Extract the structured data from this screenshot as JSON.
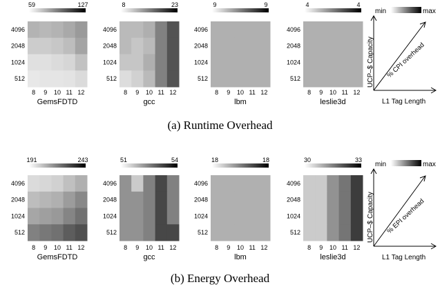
{
  "captions": {
    "runtime": "(a) Runtime Overhead",
    "energy": "(b) Energy Overhead"
  },
  "legend": {
    "min_label": "min",
    "max_label": "max",
    "y_axis_label": "UCP–$ Capacity",
    "x_axis_label": "L1 Tag Length",
    "runtime_diag_label": "% CPI overhead",
    "energy_diag_label": "% EPI overhead"
  },
  "chart_data": [
    {
      "type": "heatmap",
      "panel": "runtime",
      "title": "GemsFDTD",
      "x": [
        "8",
        "9",
        "10",
        "11",
        "12"
      ],
      "y": [
        "4096",
        "2048",
        "1024",
        "512"
      ],
      "colorbar": [
        59,
        127
      ],
      "values": [
        [
          80,
          78,
          80,
          84,
          90
        ],
        [
          70,
          70,
          72,
          76,
          86
        ],
        [
          62,
          62,
          64,
          66,
          74
        ],
        [
          59,
          60,
          60,
          61,
          64
        ]
      ]
    },
    {
      "type": "heatmap",
      "panel": "runtime",
      "title": "gcc",
      "x": [
        "8",
        "9",
        "10",
        "11",
        "12"
      ],
      "y": [
        "4096",
        "2048",
        "1024",
        "512"
      ],
      "colorbar": [
        8,
        23
      ],
      "values": [
        [
          12,
          12,
          13,
          17,
          21
        ],
        [
          12,
          11,
          12,
          17,
          21
        ],
        [
          11,
          11,
          13,
          17,
          21
        ],
        [
          9,
          10,
          12,
          17,
          21
        ]
      ]
    },
    {
      "type": "heatmap",
      "panel": "runtime",
      "title": "lbm",
      "x": [
        "8",
        "9",
        "10",
        "11",
        "12"
      ],
      "y": [
        "4096",
        "2048",
        "1024",
        "512"
      ],
      "colorbar": [
        9,
        9
      ],
      "values": [
        [
          9,
          9,
          9,
          9,
          9
        ],
        [
          9,
          9,
          9,
          9,
          9
        ],
        [
          9,
          9,
          9,
          9,
          9
        ],
        [
          9,
          9,
          9,
          9,
          9
        ]
      ]
    },
    {
      "type": "heatmap",
      "panel": "runtime",
      "title": "leslie3d",
      "x": [
        "8",
        "9",
        "10",
        "11",
        "12"
      ],
      "y": [
        "4096",
        "2048",
        "1024",
        "512"
      ],
      "colorbar": [
        4,
        4
      ],
      "values": [
        [
          4,
          4,
          4,
          4,
          4
        ],
        [
          4,
          4,
          4,
          4,
          4
        ],
        [
          4,
          4,
          4,
          4,
          4
        ],
        [
          4,
          4,
          4,
          4,
          4
        ]
      ]
    },
    {
      "type": "heatmap",
      "panel": "energy",
      "title": "GemsFDTD",
      "x": [
        "8",
        "9",
        "10",
        "11",
        "12"
      ],
      "y": [
        "4096",
        "2048",
        "1024",
        "512"
      ],
      "colorbar": [
        191,
        243
      ],
      "values": [
        [
          195,
          196,
          198,
          203,
          208
        ],
        [
          204,
          206,
          208,
          214,
          220
        ],
        [
          211,
          213,
          215,
          221,
          227
        ],
        [
          222,
          225,
          227,
          233,
          237
        ]
      ]
    },
    {
      "type": "heatmap",
      "panel": "energy",
      "title": "gcc",
      "x": [
        "8",
        "9",
        "10",
        "11",
        "12"
      ],
      "y": [
        "4096",
        "2048",
        "1024",
        "512"
      ],
      "colorbar": [
        51,
        54
      ],
      "values": [
        [
          52.5,
          51.5,
          52.8,
          53.8,
          52.8
        ],
        [
          52.5,
          52.5,
          52.8,
          53.8,
          52.8
        ],
        [
          52.5,
          52.5,
          52.8,
          53.8,
          52.8
        ],
        [
          52.5,
          52.5,
          52.8,
          53.8,
          53.8
        ]
      ]
    },
    {
      "type": "heatmap",
      "panel": "energy",
      "title": "lbm",
      "x": [
        "8",
        "9",
        "10",
        "11",
        "12"
      ],
      "y": [
        "4096",
        "2048",
        "1024",
        "512"
      ],
      "colorbar": [
        18,
        18
      ],
      "values": [
        [
          18,
          18,
          18,
          18,
          18
        ],
        [
          18,
          18,
          18,
          18,
          18
        ],
        [
          18,
          18,
          18,
          18,
          18
        ],
        [
          18,
          18,
          18,
          18,
          18
        ]
      ]
    },
    {
      "type": "heatmap",
      "panel": "energy",
      "title": "leslie3d",
      "x": [
        "8",
        "9",
        "10",
        "11",
        "12"
      ],
      "y": [
        "4096",
        "2048",
        "1024",
        "512"
      ],
      "colorbar": [
        30,
        33
      ],
      "values": [
        [
          30.5,
          30.5,
          31.5,
          32.0,
          33.0
        ],
        [
          30.5,
          30.5,
          31.5,
          32.0,
          33.0
        ],
        [
          30.5,
          30.5,
          31.5,
          32.0,
          33.0
        ],
        [
          30.5,
          30.5,
          31.5,
          32.0,
          33.0
        ]
      ]
    }
  ]
}
